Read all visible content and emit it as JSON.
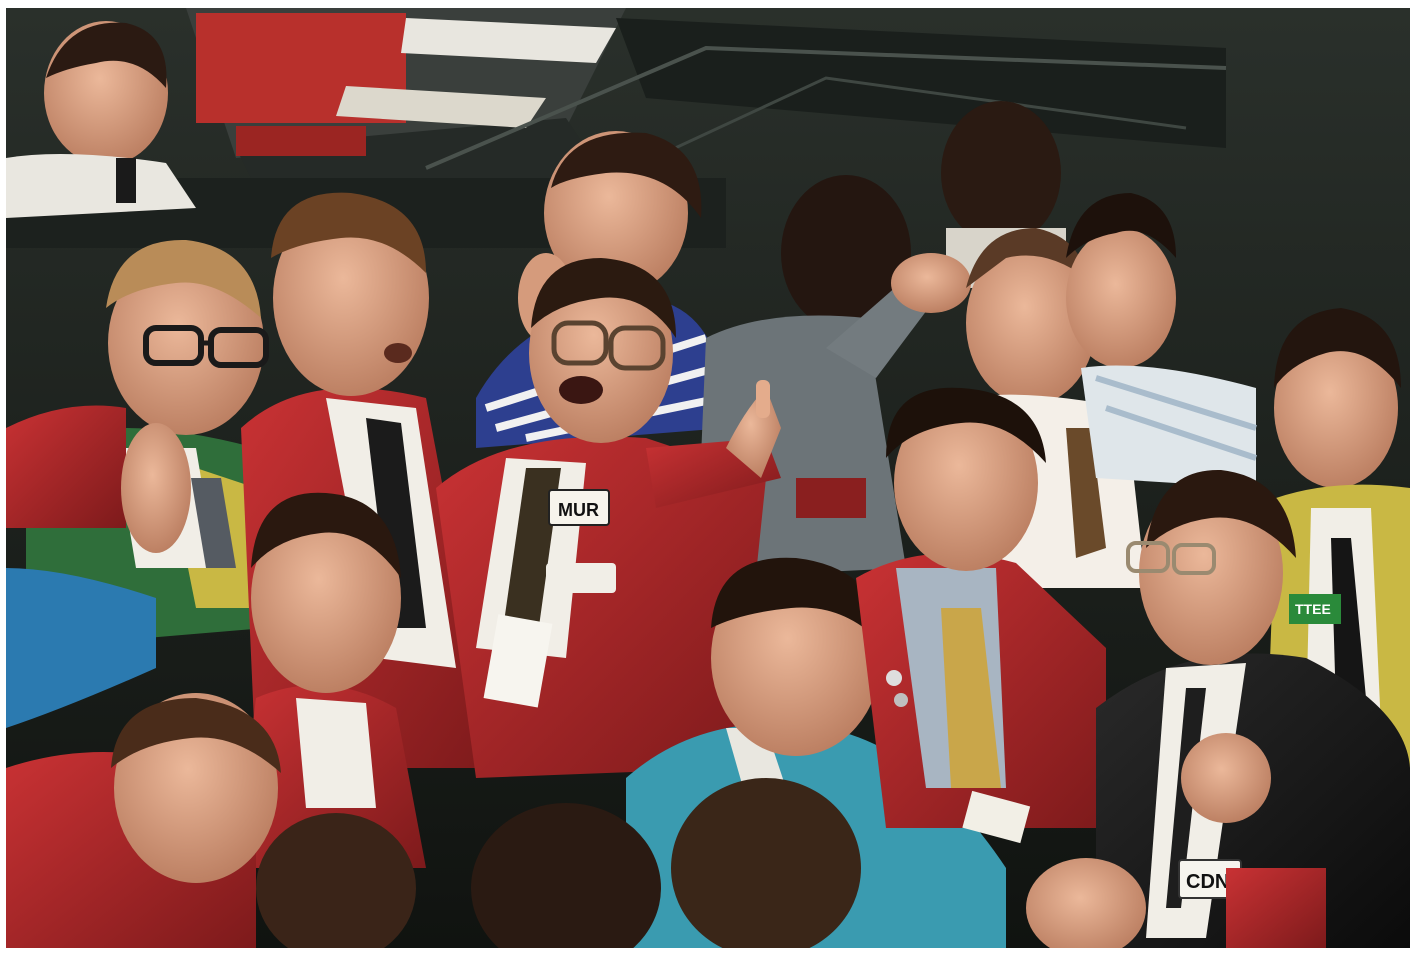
{
  "photo": {
    "subject": "trading-floor-crowd",
    "badges": {
      "center_trader": "MUR",
      "right_trader": "CDN",
      "far_right_trader": "TTEE"
    },
    "colors": {
      "background": "#1e2420",
      "red_jacket": "#b3282a",
      "red_jacket_shadow": "#7d1a1b",
      "blue_jacket": "#2b7ab0",
      "teal_shirt": "#3a9bb0",
      "skin": "#e0a98a",
      "skin_shadow": "#b57a5e",
      "hair": "#3a2418",
      "dark_suit": "#151515",
      "white_shirt": "#f1eee7",
      "green_jacket": "#2f6e3a",
      "yellow_tie": "#c9a64a"
    }
  }
}
